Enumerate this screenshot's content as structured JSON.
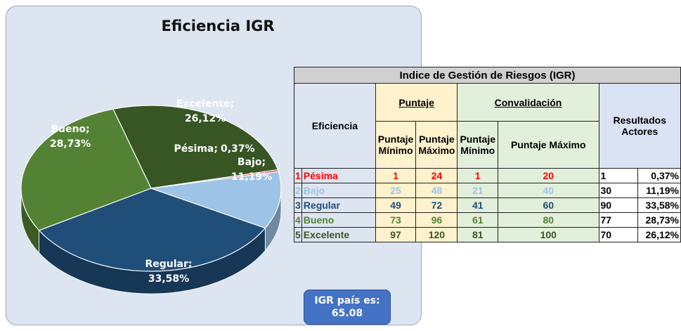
{
  "chart_data": {
    "type": "pie",
    "title": "Eficiencia IGR",
    "categories": [
      "Excelente;",
      "Pésima;",
      "Bajo;",
      "Regular;",
      "Bueno;"
    ],
    "values": [
      26.12,
      0.37,
      11.19,
      33.58,
      28.73
    ],
    "value_labels": [
      "26,12%",
      "0,37%",
      "11,19%",
      "33,58%",
      "28,73%"
    ],
    "colors": [
      "#375623",
      "#e8302c",
      "#9dc3e6",
      "#1f4e79",
      "#548235"
    ]
  },
  "table": {
    "title": "Indice de Gestión de Riesgos (IGR)",
    "header": {
      "eficiencia": "Eficiencia",
      "puntaje": "Puntaje",
      "convalidacion": "Convalidación",
      "resultados": "Resultados Actores",
      "columns": [
        "Puntaje Mínimo",
        "Puntaje Máximo",
        "Puntaje Mínimo",
        "Puntaje Máximo"
      ]
    },
    "rows": [
      [
        "1",
        "Pésima",
        "1",
        "24",
        "1",
        "20",
        "1",
        "0,37%"
      ],
      [
        "2",
        "Bajo",
        "25",
        "48",
        "21",
        "40",
        "30",
        "11,19%"
      ],
      [
        "3",
        "Regular",
        "49",
        "72",
        "41",
        "60",
        "90",
        "33,58%"
      ],
      [
        "4",
        "Bueno",
        "73",
        "96",
        "61",
        "80",
        "77",
        "28,73%"
      ],
      [
        "5",
        "Excelente",
        "97",
        "120",
        "81",
        "100",
        "70",
        "26,12%"
      ]
    ]
  },
  "box": {
    "label": "IGR país es:",
    "value": "65.08"
  }
}
